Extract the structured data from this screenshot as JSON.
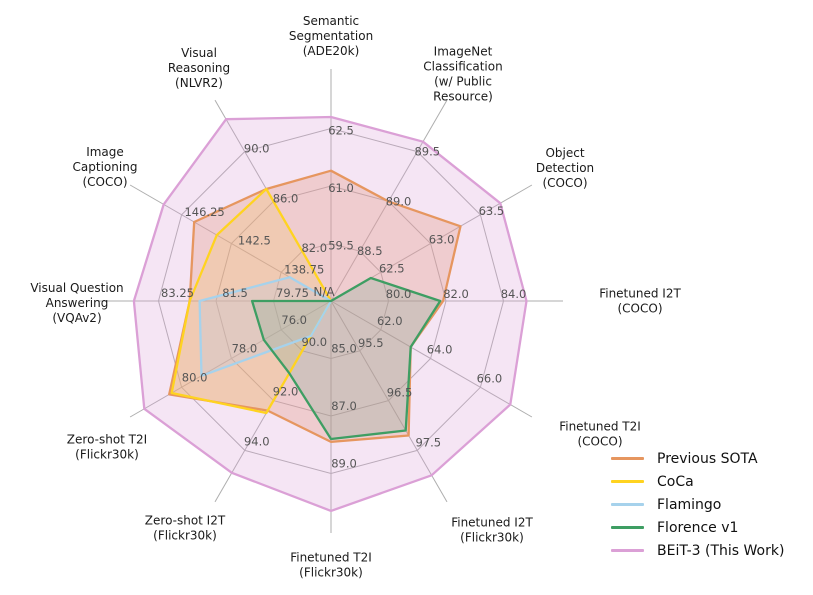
{
  "figure": {
    "background": "#ffffff",
    "grid_color": "#aeaeae",
    "tick_color": "#555555"
  },
  "chart_data": {
    "type": "radar",
    "title": "",
    "grid": "on",
    "rings": 3,
    "legend_position": "lower right",
    "center_label": "N/A",
    "axes": [
      {
        "label": "Semantic Segmentation (ADE20k)",
        "label_lines": [
          "Semantic",
          "Segmentation",
          "(ADE20k)"
        ],
        "ticks": [
          "59.5",
          "61.0",
          "62.5"
        ]
      },
      {
        "label": "ImageNet Classification (w/ Public Resource)",
        "label_lines": [
          "ImageNet",
          "Classification",
          "(w/ Public",
          "Resource)"
        ],
        "ticks": [
          "88.5",
          "89.0",
          "89.5"
        ]
      },
      {
        "label": "Object Detection (COCO)",
        "label_lines": [
          "Object",
          "Detection",
          "(COCO)"
        ],
        "ticks": [
          "62.5",
          "63.0",
          "63.5"
        ]
      },
      {
        "label": "Finetuned I2T (COCO)",
        "label_lines": [
          "Finetuned I2T",
          "(COCO)"
        ],
        "ticks": [
          "80.0",
          "82.0",
          "84.0"
        ]
      },
      {
        "label": "Finetuned T2I (COCO)",
        "label_lines": [
          "Finetuned T2I",
          "(COCO)"
        ],
        "ticks": [
          "62.0",
          "64.0",
          "66.0"
        ]
      },
      {
        "label": "Finetuned I2T (Flickr30k)",
        "label_lines": [
          "Finetuned I2T",
          "(Flickr30k)"
        ],
        "ticks": [
          "95.5",
          "96.5",
          "97.5"
        ]
      },
      {
        "label": "Finetuned T2I (Flickr30k)",
        "label_lines": [
          "Finetuned T2I",
          "(Flickr30k)"
        ],
        "ticks": [
          "85.0",
          "87.0",
          "89.0"
        ]
      },
      {
        "label": "Zero-shot I2T (Flickr30k)",
        "label_lines": [
          "Zero-shot I2T",
          "(Flickr30k)"
        ],
        "ticks": [
          "90.0",
          "92.0",
          "94.0"
        ]
      },
      {
        "label": "Zero-shot T2I (Flickr30k)",
        "label_lines": [
          "Zero-shot T2I",
          "(Flickr30k)"
        ],
        "ticks": [
          "76.0",
          "78.0",
          "80.0"
        ]
      },
      {
        "label": "Visual Question Answering (VQAv2)",
        "label_lines": [
          "Visual Question",
          "Answering",
          "(VQAv2)"
        ],
        "ticks": [
          "79.75",
          "81.5",
          "83.25"
        ]
      },
      {
        "label": "Image Captioning (COCO)",
        "label_lines": [
          "Image",
          "Captioning",
          "(COCO)"
        ],
        "ticks": [
          "138.75",
          "142.5",
          "146.25"
        ]
      },
      {
        "label": "Visual Reasoning (NLVR2)",
        "label_lines": [
          "Visual",
          "Reasoning",
          "(NLVR2)"
        ],
        "ticks": [
          "82.0",
          "86.0",
          "90.0"
        ]
      }
    ],
    "series": [
      {
        "name": "Previous SOTA",
        "color": "#E6965F",
        "fill_opacity": 0.32,
        "values": [
          61.4,
          89.0,
          63.3,
          81.9,
          63.2,
          97.2,
          87.9,
          92.4,
          80.5,
          82.3,
          145.3,
          87.0
        ]
      },
      {
        "name": "CoCa",
        "color": "#FFD320",
        "fill_opacity": 0.22,
        "values": [
          null,
          null,
          null,
          null,
          null,
          null,
          null,
          92.5,
          80.4,
          82.3,
          143.6,
          87.0
        ]
      },
      {
        "name": "Flamingo",
        "color": "#A6D2EC",
        "fill_opacity": 0.25,
        "values": [
          null,
          null,
          null,
          null,
          null,
          null,
          null,
          89.4,
          79.2,
          82.0,
          138.1,
          null
        ]
      },
      {
        "name": "Florence v1",
        "color": "#3E9E63",
        "fill_opacity": 0.22,
        "values": [
          null,
          null,
          62.4,
          81.8,
          63.2,
          97.1,
          87.8,
          90.9,
          76.7,
          80.4,
          null,
          null
        ]
      },
      {
        "name": "BEiT-3 (This Work)",
        "color": "#DBA0D6",
        "fill_opacity": 0.28,
        "values": [
          62.8,
          89.6,
          63.7,
          84.8,
          67.2,
          98.0,
          90.3,
          94.9,
          81.5,
          84.0,
          147.6,
          92.6
        ]
      }
    ]
  }
}
